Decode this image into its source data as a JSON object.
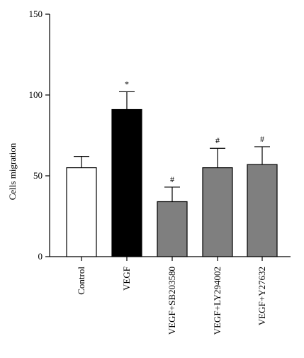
{
  "chart_data": {
    "type": "bar",
    "title": "",
    "xlabel": "",
    "ylabel": "Cells migration",
    "ylim": [
      0,
      150
    ],
    "yticks": [
      0,
      50,
      100,
      150
    ],
    "grid": false,
    "categories": [
      "Control",
      "VEGF",
      "VEGF+SB203580",
      "VEGF+LY294002",
      "VEGF+Y27632"
    ],
    "values": [
      55,
      91,
      34,
      55,
      57
    ],
    "errors": [
      7,
      11,
      9,
      12,
      11
    ],
    "annotations": [
      "",
      "*",
      "#",
      "#",
      "#"
    ],
    "bar_colors": [
      "#ffffff",
      "#000000",
      "#7f7f7f",
      "#7f7f7f",
      "#7f7f7f"
    ]
  }
}
